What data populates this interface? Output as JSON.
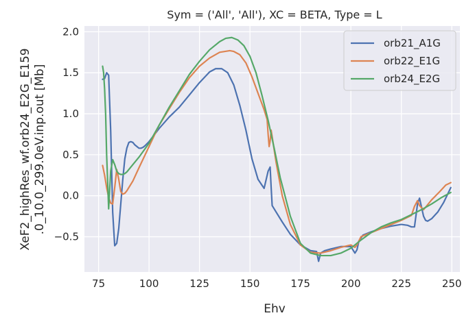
{
  "chart_data": {
    "type": "line",
    "title": "Sym = ('All', 'All'), XC = BETA, Type = L",
    "xlabel": "Ehv",
    "ylabel_lines": [
      "XeF2_highRes_wf.orb24_E2G_E159",
      ".0_10.0_299.0eV.inp.out [Mb]"
    ],
    "xlim": [
      68,
      254
    ],
    "ylim": [
      -0.93,
      2.07
    ],
    "xticks": [
      75,
      100,
      125,
      150,
      175,
      200,
      225,
      250
    ],
    "yticks": [
      -0.5,
      0.0,
      0.5,
      1.0,
      1.5,
      2.0
    ],
    "xtick_labels": [
      "75",
      "100",
      "125",
      "150",
      "175",
      "200",
      "225",
      "250"
    ],
    "ytick_labels": [
      "−0.5",
      "0.0",
      "0.5",
      "1.0",
      "1.5",
      "2.0"
    ],
    "grid": true,
    "legend_position": "top-right",
    "background": "#eaeaf2",
    "series": [
      {
        "name": "orb21_A1G",
        "color": "#4c72b0",
        "x": [
          77,
          78,
          79,
          80,
          81,
          82,
          83,
          84,
          85,
          86,
          87,
          88,
          89,
          90,
          91,
          92,
          93,
          94,
          95,
          96,
          97,
          98,
          100,
          105,
          110,
          115,
          120,
          125,
          130,
          133,
          136,
          139,
          142,
          145,
          148,
          151,
          154,
          157,
          159,
          160,
          160.5,
          161,
          163,
          166,
          170,
          175,
          180,
          183,
          184,
          185,
          187,
          190,
          195,
          200,
          202,
          203,
          204,
          206,
          210,
          215,
          220,
          225,
          228,
          230,
          231.5,
          233,
          234,
          235,
          236,
          237,
          238,
          240,
          243,
          246,
          249.5
        ],
        "y": [
          1.42,
          1.43,
          1.5,
          1.47,
          0.8,
          -0.2,
          -0.61,
          -0.58,
          -0.4,
          -0.1,
          0.2,
          0.45,
          0.58,
          0.65,
          0.66,
          0.65,
          0.62,
          0.6,
          0.58,
          0.58,
          0.59,
          0.61,
          0.66,
          0.82,
          0.96,
          1.08,
          1.23,
          1.38,
          1.51,
          1.55,
          1.55,
          1.5,
          1.35,
          1.1,
          0.8,
          0.45,
          0.2,
          0.09,
          0.3,
          0.35,
          0.1,
          -0.12,
          -0.2,
          -0.32,
          -0.47,
          -0.6,
          -0.67,
          -0.68,
          -0.8,
          -0.7,
          -0.67,
          -0.65,
          -0.62,
          -0.62,
          -0.7,
          -0.66,
          -0.55,
          -0.48,
          -0.44,
          -0.4,
          -0.37,
          -0.35,
          -0.36,
          -0.38,
          -0.38,
          -0.1,
          -0.03,
          -0.14,
          -0.25,
          -0.3,
          -0.31,
          -0.28,
          -0.2,
          -0.08,
          0.1
        ]
      },
      {
        "name": "orb22_E1G",
        "color": "#dd8452",
        "x": [
          77,
          78,
          79,
          80,
          81,
          82,
          83,
          84,
          85,
          86,
          87,
          88,
          89,
          90,
          92,
          95,
          100,
          105,
          110,
          115,
          120,
          125,
          130,
          135,
          140,
          142,
          145,
          148,
          151,
          154,
          157,
          158.5,
          159,
          159.5,
          160,
          160.5,
          161,
          163,
          166,
          170,
          175,
          180,
          185,
          190,
          195,
          200,
          202,
          203,
          205,
          210,
          215,
          220,
          225,
          230,
          231.5,
          233,
          234,
          236,
          240,
          244,
          247,
          249.5
        ],
        "y": [
          0.37,
          0.25,
          0.1,
          -0.02,
          -0.09,
          -0.1,
          0.1,
          0.32,
          0.2,
          0.05,
          0.02,
          0.03,
          0.06,
          0.1,
          0.18,
          0.34,
          0.6,
          0.86,
          1.06,
          1.26,
          1.44,
          1.58,
          1.68,
          1.75,
          1.77,
          1.76,
          1.72,
          1.62,
          1.45,
          1.25,
          1.05,
          0.93,
          0.75,
          0.6,
          0.67,
          0.8,
          0.72,
          0.4,
          0.0,
          -0.35,
          -0.6,
          -0.69,
          -0.7,
          -0.67,
          -0.63,
          -0.6,
          -0.63,
          -0.6,
          -0.5,
          -0.45,
          -0.4,
          -0.35,
          -0.3,
          -0.24,
          -0.13,
          -0.06,
          -0.12,
          -0.17,
          -0.05,
          0.05,
          0.13,
          0.16
        ]
      },
      {
        "name": "orb24_E2G",
        "color": "#55a868",
        "x": [
          77,
          77.5,
          78,
          78.5,
          79,
          80,
          81,
          82,
          83,
          84,
          85,
          86,
          87,
          88,
          89,
          90,
          92,
          95,
          100,
          105,
          110,
          115,
          120,
          125,
          130,
          135,
          138,
          141,
          144,
          147,
          150,
          153,
          156,
          159,
          162,
          165,
          170,
          175,
          180,
          185,
          190,
          195,
          200,
          205,
          210,
          215,
          220,
          225,
          230,
          235,
          240,
          245,
          249.5
        ],
        "y": [
          1.58,
          1.5,
          1.3,
          1.0,
          0.5,
          -0.16,
          0.3,
          0.44,
          0.38,
          0.3,
          0.27,
          0.26,
          0.26,
          0.27,
          0.29,
          0.32,
          0.38,
          0.47,
          0.64,
          0.86,
          1.08,
          1.28,
          1.48,
          1.64,
          1.78,
          1.88,
          1.92,
          1.93,
          1.9,
          1.83,
          1.7,
          1.5,
          1.22,
          0.92,
          0.58,
          0.22,
          -0.25,
          -0.58,
          -0.7,
          -0.73,
          -0.73,
          -0.7,
          -0.64,
          -0.54,
          -0.45,
          -0.38,
          -0.33,
          -0.29,
          -0.23,
          -0.17,
          -0.1,
          -0.02,
          0.04
        ]
      }
    ]
  }
}
